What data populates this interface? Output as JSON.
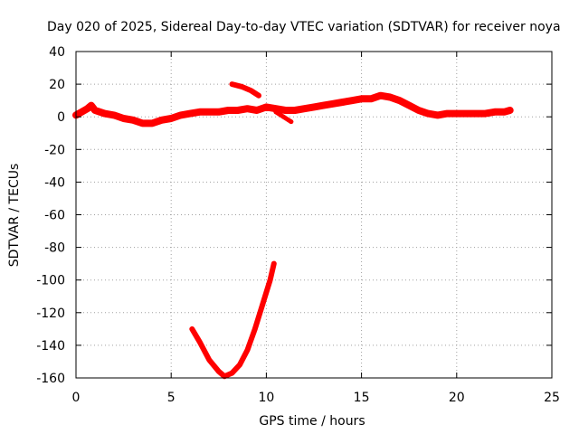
{
  "chart_data": {
    "type": "scatter",
    "title": "Day 020 of 2025, Sidereal Day-to-day VTEC variation (SDTVAR) for receiver noya",
    "xlabel": "GPS time / hours",
    "ylabel": "SDTVAR / TECUs",
    "xlim": [
      0,
      25
    ],
    "ylim": [
      -160,
      40
    ],
    "xticks": [
      "0",
      "5",
      "10",
      "15",
      "20",
      "25"
    ],
    "yticks": [
      "40",
      "20",
      "0",
      "-20",
      "-40",
      "-60",
      "-80",
      "-100",
      "-120",
      "-140",
      "-160"
    ],
    "grid": true,
    "color": "#ff0000",
    "series": [
      {
        "name": "main-band",
        "x": [
          0.0,
          0.3,
          0.6,
          0.8,
          1.0,
          1.5,
          2.0,
          2.5,
          3.0,
          3.5,
          4.0,
          4.5,
          5.0,
          5.5,
          6.0,
          6.5,
          7.0,
          7.5,
          8.0,
          8.5,
          9.0,
          9.5,
          10.0,
          10.5,
          11.0,
          11.5,
          12.0,
          12.5,
          13.0,
          13.5,
          14.0,
          14.5,
          15.0,
          15.5,
          16.0,
          16.5,
          17.0,
          17.5,
          18.0,
          18.5,
          19.0,
          19.5,
          20.0,
          20.5,
          21.0,
          21.5,
          22.0,
          22.5,
          22.8
        ],
        "y": [
          1,
          3,
          5,
          7,
          4,
          2,
          1,
          -1,
          -2,
          -4,
          -4,
          -2,
          -1,
          1,
          2,
          3,
          3,
          3,
          4,
          4,
          5,
          4,
          6,
          5,
          4,
          4,
          5,
          6,
          7,
          8,
          9,
          10,
          11,
          11,
          13,
          12,
          10,
          7,
          4,
          2,
          1,
          2,
          2,
          2,
          2,
          2,
          3,
          3,
          4
        ]
      },
      {
        "name": "upper-segment",
        "x": [
          8.2,
          8.7,
          9.2,
          9.6
        ],
        "y": [
          20,
          18.5,
          16,
          13
        ]
      },
      {
        "name": "descending-segment",
        "x": [
          10.5,
          10.9,
          11.3
        ],
        "y": [
          3,
          0,
          -3
        ]
      },
      {
        "name": "deep-u-curve",
        "x": [
          6.1,
          6.5,
          7.0,
          7.5,
          7.8,
          8.2,
          8.6,
          9.0,
          9.4,
          9.8,
          10.2,
          10.4
        ],
        "y": [
          -130,
          -138,
          -149,
          -156,
          -159,
          -157,
          -152,
          -143,
          -130,
          -115,
          -100,
          -90
        ]
      }
    ]
  }
}
